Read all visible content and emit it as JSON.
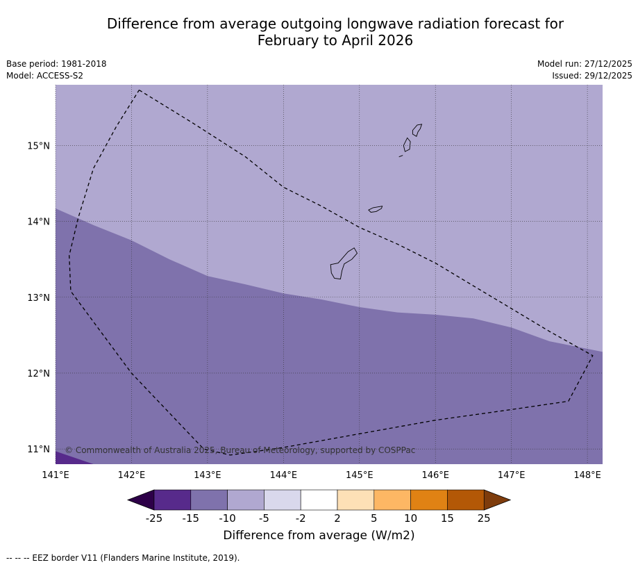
{
  "title": {
    "line1": "Difference from average outgoing longwave radiation forecast for",
    "line2": "February to April 2026"
  },
  "meta_left": {
    "base_period": "Base period: 1981-2018",
    "model": "Model: ACCESS-S2"
  },
  "meta_right": {
    "model_run": "Model run: 27/12/2025",
    "issued": "Issued: 29/12/2025"
  },
  "map": {
    "lon_range": [
      141.0,
      148.2
    ],
    "lat_range": [
      10.8,
      15.8
    ],
    "lon_ticks": [
      {
        "value": 141,
        "label": "141°E"
      },
      {
        "value": 142,
        "label": "142°E"
      },
      {
        "value": 143,
        "label": "143°E"
      },
      {
        "value": 144,
        "label": "144°E"
      },
      {
        "value": 145,
        "label": "145°E"
      },
      {
        "value": 146,
        "label": "146°E"
      },
      {
        "value": 147,
        "label": "147°E"
      },
      {
        "value": 148,
        "label": "148°E"
      }
    ],
    "lat_ticks": [
      {
        "value": 15,
        "label": "15°N"
      },
      {
        "value": 14,
        "label": "14°N"
      },
      {
        "value": 13,
        "label": "13°N"
      },
      {
        "value": 12,
        "label": "12°N"
      },
      {
        "value": 11,
        "label": "11°N"
      }
    ],
    "regions": [
      {
        "name": "northern-area",
        "class": "-10 to -5",
        "color": "#b0a8d0"
      },
      {
        "name": "southern-area",
        "class": "-15 to -10",
        "color": "#7f72ac"
      },
      {
        "name": "south-west-corner",
        "class": "-25 to -15",
        "color": "#572a8b"
      }
    ],
    "boundary_lonlat": [
      [
        141.0,
        14.17
      ],
      [
        141.5,
        13.95
      ],
      [
        142.0,
        13.75
      ],
      [
        142.5,
        13.5
      ],
      [
        143.0,
        13.28
      ],
      [
        143.5,
        13.17
      ],
      [
        144.0,
        13.05
      ],
      [
        144.5,
        12.97
      ],
      [
        145.0,
        12.87
      ],
      [
        145.5,
        12.8
      ],
      [
        146.0,
        12.77
      ],
      [
        146.5,
        12.72
      ],
      [
        147.0,
        12.6
      ],
      [
        147.5,
        12.42
      ],
      [
        148.2,
        12.28
      ]
    ],
    "corner_boundary_lonlat": [
      [
        141.0,
        10.97
      ],
      [
        141.5,
        10.8
      ]
    ],
    "eez_lonlat": [
      [
        142.1,
        15.73
      ],
      [
        142.8,
        15.3
      ],
      [
        143.5,
        14.85
      ],
      [
        144.0,
        14.45
      ],
      [
        144.5,
        14.2
      ],
      [
        145.0,
        13.92
      ],
      [
        145.5,
        13.7
      ],
      [
        146.0,
        13.45
      ],
      [
        146.5,
        13.15
      ],
      [
        147.0,
        12.85
      ],
      [
        147.5,
        12.55
      ],
      [
        148.07,
        12.23
      ],
      [
        147.75,
        11.63
      ],
      [
        147.0,
        11.52
      ],
      [
        146.0,
        11.38
      ],
      [
        145.0,
        11.2
      ],
      [
        144.0,
        11.02
      ],
      [
        143.3,
        10.92
      ],
      [
        142.95,
        11.0
      ],
      [
        142.0,
        12.0
      ],
      [
        141.2,
        13.08
      ],
      [
        141.18,
        13.55
      ],
      [
        141.3,
        14.05
      ],
      [
        141.5,
        14.7
      ],
      [
        141.8,
        15.25
      ],
      [
        142.1,
        15.73
      ]
    ],
    "islands": [
      {
        "name": "guam",
        "lonlat": [
          [
            144.62,
            13.43
          ],
          [
            144.72,
            13.45
          ],
          [
            144.85,
            13.6
          ],
          [
            144.93,
            13.65
          ],
          [
            144.97,
            13.58
          ],
          [
            144.9,
            13.5
          ],
          [
            144.8,
            13.44
          ],
          [
            144.77,
            13.35
          ],
          [
            144.75,
            13.24
          ],
          [
            144.67,
            13.25
          ],
          [
            144.63,
            13.32
          ],
          [
            144.62,
            13.43
          ]
        ]
      },
      {
        "name": "rota",
        "lonlat": [
          [
            145.12,
            14.15
          ],
          [
            145.18,
            14.18
          ],
          [
            145.3,
            14.2
          ],
          [
            145.29,
            14.17
          ],
          [
            145.22,
            14.13
          ],
          [
            145.15,
            14.12
          ],
          [
            145.12,
            14.15
          ]
        ]
      },
      {
        "name": "tinian",
        "lonlat": [
          [
            145.58,
            15.0
          ],
          [
            145.63,
            15.1
          ],
          [
            145.67,
            15.05
          ],
          [
            145.66,
            14.95
          ],
          [
            145.6,
            14.92
          ],
          [
            145.58,
            15.0
          ]
        ]
      },
      {
        "name": "saipan",
        "lonlat": [
          [
            145.7,
            15.2
          ],
          [
            145.76,
            15.27
          ],
          [
            145.82,
            15.28
          ],
          [
            145.8,
            15.22
          ],
          [
            145.77,
            15.18
          ],
          [
            145.75,
            15.12
          ],
          [
            145.7,
            15.15
          ],
          [
            145.7,
            15.2
          ]
        ]
      },
      {
        "name": "aguijan",
        "lonlat": [
          [
            145.52,
            14.85
          ],
          [
            145.57,
            14.87
          ]
        ]
      }
    ],
    "copyright": "© Commonwealth of Australia 2025, Bureau of Meteorology, supported by COSPPac"
  },
  "colorbar": {
    "low_extend_color": "#2d0048",
    "high_extend_color": "#7e3c0c",
    "bins": [
      "#572a8b",
      "#7f72ac",
      "#b0a8d0",
      "#d9d8ec",
      "#ffffff",
      "#fde0b6",
      "#fdb764",
      "#e08214",
      "#b35806"
    ],
    "tick_labels": [
      "-25",
      "-15",
      "-10",
      "-5",
      "-2",
      "2",
      "5",
      "10",
      "15",
      "25"
    ],
    "label": "Difference from average (W/m2)"
  },
  "footer": "--  --  -- EEZ border V11 (Flanders Marine Institute, 2019)."
}
